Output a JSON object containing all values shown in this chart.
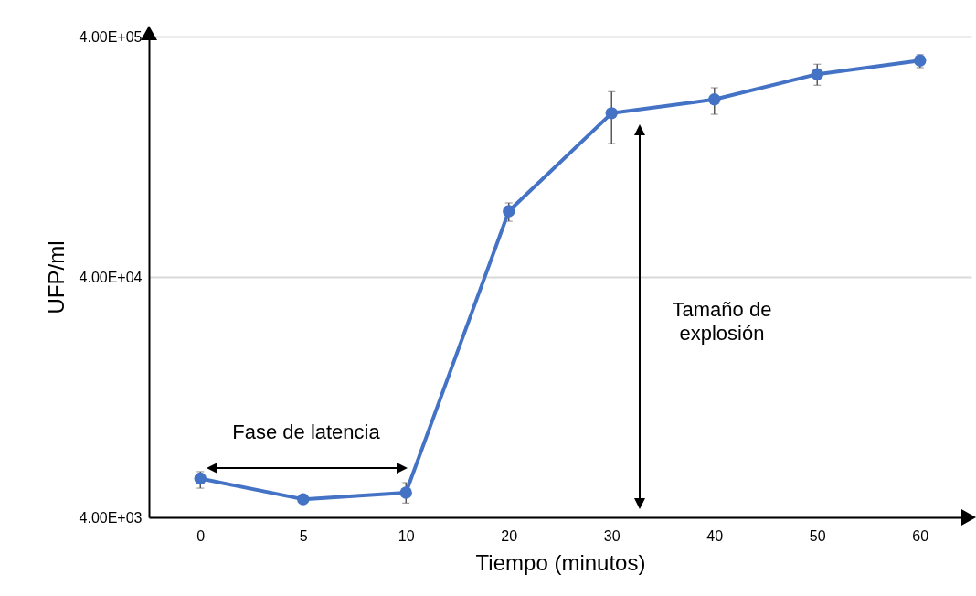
{
  "chart_data": {
    "type": "line",
    "xlabel": "Tiempo (minutos)",
    "ylabel": "UFP/ml",
    "categories": [
      "0",
      "5",
      "10",
      "20",
      "30",
      "40",
      "50",
      "60"
    ],
    "series": [
      {
        "color": "#4472c4",
        "values": [
          5800,
          4760,
          5070,
          75100,
          192000,
          219000,
          279000,
          318000
        ],
        "errors": [
          [
            5290,
            6200
          ],
          null,
          [
            4590,
            5580
          ],
          [
            68200,
            81300
          ],
          [
            143600,
            236000
          ],
          [
            190000,
            245000
          ],
          [
            251000,
            307000
          ],
          [
            297000,
            336000
          ]
        ]
      }
    ],
    "log": true,
    "ylim": [
      4000,
      400000
    ],
    "yticks": [
      {
        "value": 4000,
        "label": "4.00E+03"
      },
      {
        "value": 40000,
        "label": "4.00E+04"
      },
      {
        "value": 400000,
        "label": "4.00E+05"
      }
    ],
    "grid": "y",
    "marker": "circle",
    "line_style": "solid",
    "annotations": [
      "Fase de latencia",
      "Tamaño de explosión"
    ]
  }
}
